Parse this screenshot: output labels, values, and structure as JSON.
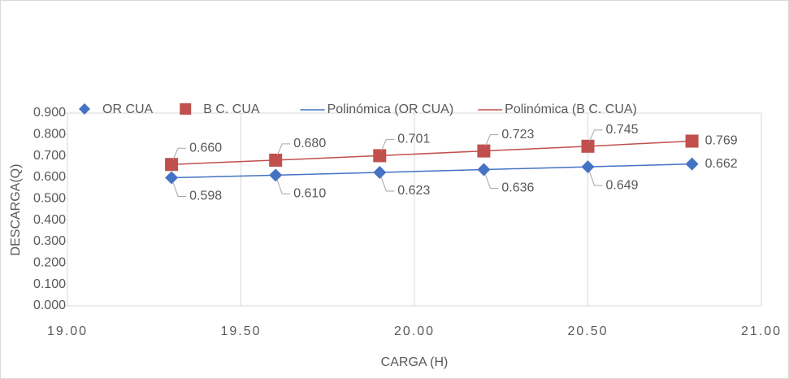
{
  "chart_data": {
    "type": "scatter",
    "x_label": "CARGA (H)",
    "y_label": "DESCARGA(Q)",
    "x": [
      19.3,
      19.6,
      19.9,
      20.2,
      20.5,
      20.8
    ],
    "series": [
      {
        "name": "OR CUA",
        "color": "#4472c4",
        "marker": "diamond",
        "values": [
          0.598,
          0.61,
          0.623,
          0.636,
          0.649,
          0.662
        ],
        "value_labels": [
          "0.598",
          "0.610",
          "0.623",
          "0.636",
          "0.649",
          "0.662"
        ],
        "trendline": {
          "name": "Polinómica (OR CUA)",
          "color": "#4472c4"
        }
      },
      {
        "name": "B C. CUA",
        "color": "#c0504d",
        "marker": "square",
        "values": [
          0.66,
          0.68,
          0.701,
          0.723,
          0.745,
          0.769
        ],
        "value_labels": [
          "0.660",
          "0.680",
          "0.701",
          "0.723",
          "0.745",
          "0.769"
        ],
        "trendline": {
          "name": "Polinómica (B C. CUA)",
          "color": "#c0504d"
        }
      }
    ],
    "xlim": [
      19,
      21
    ],
    "xticks": [
      {
        "value": 19,
        "label": "19.00"
      },
      {
        "value": 19.5,
        "label": "19.50"
      },
      {
        "value": 20,
        "label": "20.00"
      },
      {
        "value": 20.5,
        "label": "20.50"
      },
      {
        "value": 21,
        "label": "21.00"
      }
    ],
    "ylim": [
      0,
      0.9
    ],
    "yticks": [
      {
        "value": 0,
        "label": "0.000"
      },
      {
        "value": 0.1,
        "label": "0.100"
      },
      {
        "value": 0.2,
        "label": "0.200"
      },
      {
        "value": 0.3,
        "label": "0.300"
      },
      {
        "value": 0.4,
        "label": "0.400"
      },
      {
        "value": 0.5,
        "label": "0.500"
      },
      {
        "value": 0.6,
        "label": "0.600"
      },
      {
        "value": 0.7,
        "label": "0.700"
      },
      {
        "value": 0.8,
        "label": "0.800"
      },
      {
        "value": 0.9,
        "label": "0.900"
      }
    ],
    "grid": "x",
    "legend": "top"
  }
}
